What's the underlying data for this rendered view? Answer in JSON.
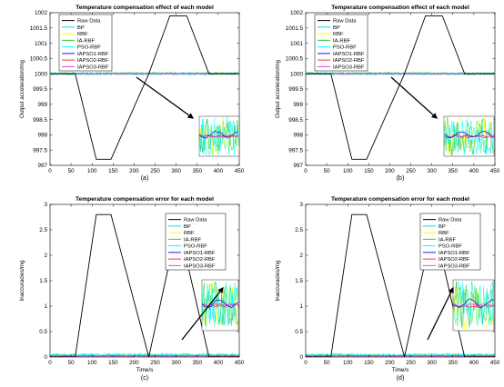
{
  "colors": {
    "Raw Data": "#000000",
    "BP": "#00e0e0",
    "RBF": "#ffff00",
    "IA-RBF": "#33cc33",
    "PSO-RBF": "#00ffff",
    "IAPSO1-RBF": "#1a1aff",
    "IAPSO2-RBF": "#ff3030",
    "IAPSO3-RBF": "#e040ff"
  },
  "chart_data": [
    {
      "type": "line",
      "panel_label": "(a)",
      "title": "Temperature compensation effect of each model",
      "xlabel": "",
      "ylabel": "Output acceleration/mg",
      "xlim": [
        0,
        450
      ],
      "ylim": [
        997,
        1002
      ],
      "xticks": [
        0,
        50,
        100,
        150,
        200,
        250,
        300,
        350,
        400,
        450
      ],
      "yticks": [
        997,
        997.5,
        998,
        998.5,
        999,
        999.5,
        1000,
        1000.5,
        1001,
        1001.5,
        1002
      ],
      "legend_position": "upper-left",
      "raw_data": {
        "x": [
          0,
          60,
          110,
          145,
          235,
          285,
          325,
          378,
          450
        ],
        "y": [
          1000,
          1000,
          997.2,
          997.2,
          1000,
          1001.9,
          1001.9,
          1000,
          1000
        ]
      },
      "series": [
        {
          "name": "Raw Data"
        },
        {
          "name": "BP",
          "level": 1000.0,
          "noise": 0.04
        },
        {
          "name": "RBF",
          "level": 1000.0,
          "noise": 0.03
        },
        {
          "name": "IA-RBF",
          "level": 1000.02,
          "noise": 0.03
        },
        {
          "name": "PSO-RBF",
          "level": 1000.0,
          "noise": 0.04
        },
        {
          "name": "IAPSO1-RBF",
          "level": 1000.0,
          "noise": 0.01
        },
        {
          "name": "IAPSO2-RBF",
          "level": 1000.0,
          "noise": 0.008
        },
        {
          "name": "IAPSO3-RBF",
          "level": 1000.0,
          "noise": 0.008
        }
      ]
    },
    {
      "type": "line",
      "panel_label": "(b)",
      "title": "Temperature compensation effect of each model",
      "xlabel": "",
      "ylabel": "Output acceleration/mg",
      "xlim": [
        0,
        450
      ],
      "ylim": [
        997,
        1002
      ],
      "xticks": [
        0,
        50,
        100,
        150,
        200,
        250,
        300,
        350,
        400,
        450
      ],
      "yticks": [
        997,
        997.5,
        998,
        998.5,
        999,
        999.5,
        1000,
        1000.5,
        1001,
        1001.5,
        1002
      ],
      "legend_position": "upper-left",
      "raw_data": {
        "x": [
          0,
          60,
          110,
          145,
          235,
          285,
          325,
          378,
          450
        ],
        "y": [
          1000,
          1000,
          997.2,
          997.2,
          1000,
          1001.9,
          1001.9,
          1000,
          1000
        ]
      },
      "series": [
        {
          "name": "Raw Data"
        },
        {
          "name": "BP",
          "level": 1000.0,
          "noise": 0.04
        },
        {
          "name": "RBF",
          "level": 1000.0,
          "noise": 0.03
        },
        {
          "name": "IA-RBF",
          "level": 1000.02,
          "noise": 0.03
        },
        {
          "name": "PSO-RBF",
          "level": 1000.0,
          "noise": 0.04
        },
        {
          "name": "IAPSO1-RBF",
          "level": 1000.0,
          "noise": 0.01
        },
        {
          "name": "IAPSO2-RBF",
          "level": 1000.0,
          "noise": 0.008
        },
        {
          "name": "IAPSO3-RBF",
          "level": 1000.0,
          "noise": 0.008
        }
      ]
    },
    {
      "type": "line",
      "panel_label": "(c)",
      "title": "Temperature compensation error for each model",
      "xlabel": "Time/s",
      "ylabel": "Inaccuracies/mg",
      "xlim": [
        0,
        450
      ],
      "ylim": [
        0,
        3
      ],
      "xticks": [
        0,
        50,
        100,
        150,
        200,
        250,
        300,
        350,
        400,
        450
      ],
      "yticks": [
        0,
        0.5,
        1,
        1.5,
        2,
        2.5,
        3
      ],
      "legend_position": "upper-right",
      "raw_data": {
        "x": [
          0,
          60,
          110,
          145,
          235,
          285,
          325,
          378,
          450
        ],
        "y": [
          0,
          0,
          2.8,
          2.8,
          0,
          1.9,
          1.9,
          0,
          0
        ]
      },
      "series": [
        {
          "name": "Raw Data"
        },
        {
          "name": "BP",
          "level": 0.04,
          "noise": 0.03
        },
        {
          "name": "RBF",
          "level": 0.03,
          "noise": 0.02
        },
        {
          "name": "IA-RBF",
          "level": 0.03,
          "noise": 0.02
        },
        {
          "name": "PSO-RBF",
          "level": 0.04,
          "noise": 0.03
        },
        {
          "name": "IAPSO1-RBF",
          "level": 0.02,
          "noise": 0.01
        },
        {
          "name": "IAPSO2-RBF",
          "level": 0.02,
          "noise": 0.01
        },
        {
          "name": "IAPSO3-RBF",
          "level": 0.02,
          "noise": 0.01
        }
      ]
    },
    {
      "type": "line",
      "panel_label": "(d)",
      "title": "Temperature compensation error for each model",
      "xlabel": "Time/s",
      "ylabel": "Inaccuracies/mg",
      "xlim": [
        0,
        450
      ],
      "ylim": [
        0,
        3
      ],
      "xticks": [
        0,
        50,
        100,
        150,
        200,
        250,
        300,
        350,
        400,
        450
      ],
      "yticks": [
        0,
        0.5,
        1,
        1.5,
        2,
        2.5,
        3
      ],
      "legend_position": "upper-right",
      "raw_data": {
        "x": [
          0,
          60,
          110,
          145,
          235,
          285,
          325,
          378,
          450
        ],
        "y": [
          0,
          0,
          2.8,
          2.8,
          0,
          1.9,
          1.9,
          0,
          0
        ]
      },
      "series": [
        {
          "name": "Raw Data"
        },
        {
          "name": "BP",
          "level": 0.04,
          "noise": 0.03
        },
        {
          "name": "RBF",
          "level": 0.03,
          "noise": 0.02
        },
        {
          "name": "IA-RBF",
          "level": 0.03,
          "noise": 0.02
        },
        {
          "name": "PSO-RBF",
          "level": 0.04,
          "noise": 0.03
        },
        {
          "name": "IAPSO1-RBF",
          "level": 0.02,
          "noise": 0.01
        },
        {
          "name": "IAPSO2-RBF",
          "level": 0.02,
          "noise": 0.01
        },
        {
          "name": "IAPSO3-RBF",
          "level": 0.02,
          "noise": 0.01
        }
      ]
    }
  ]
}
